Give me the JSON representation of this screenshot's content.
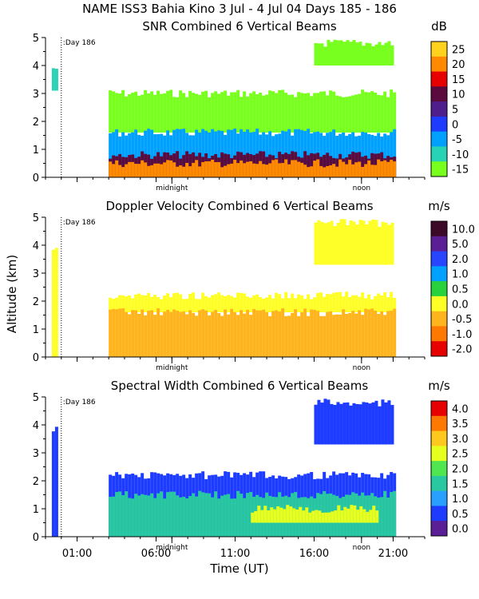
{
  "header": {
    "title": "NAME ISS3 Bahia Kino    3 Jul -  4 Jul 04 Days 185 - 186"
  },
  "shared": {
    "day_marker": "Day 186",
    "midnight_label": "midnight",
    "noon_label": "noon",
    "ylabel": "Altitude (km)",
    "xlabel": "Time (UT)",
    "x_ticks": [
      "01:00",
      "06:00",
      "11:00",
      "16:00",
      "21:00"
    ],
    "x_tick_hours": [
      1,
      6,
      11,
      16,
      21
    ],
    "x_range_hours": [
      -1,
      23
    ],
    "data_x_range_hours": [
      -0.6,
      21.0
    ]
  },
  "chart_data": [
    {
      "type": "heatmap",
      "title": "SNR Combined 6 Vertical Beams",
      "units": "dB",
      "ylabel": "Altitude (km)",
      "ylim": [
        0,
        5
      ],
      "y_ticks": [
        "0",
        "1",
        "2",
        "3",
        "4",
        "5"
      ],
      "colorbar_labels": [
        "25",
        "20",
        "15",
        "10",
        "5",
        "0",
        "-5",
        "-10",
        "-15"
      ],
      "colorbar_colors": [
        "#ffd21e",
        "#ff8a00",
        "#e60000",
        "#5a0a3c",
        "#4e1e8c",
        "#1e3cff",
        "#00a0ff",
        "#28d2b4",
        "#78ff1e"
      ],
      "layers": [
        {
          "x0": -0.6,
          "x1": -0.2,
          "y0": 3.1,
          "y1": 3.9,
          "color_value": -10
        },
        {
          "x0": 3.0,
          "x1": 21.0,
          "y0": 1.6,
          "y1": 3.0,
          "color_value": -15
        },
        {
          "x0": 3.0,
          "x1": 21.0,
          "y0": 0.0,
          "y1": 1.6,
          "color_value": -5
        },
        {
          "x0": 3.0,
          "x1": 21.0,
          "y0": 0.0,
          "y1": 0.8,
          "color_value": 10
        },
        {
          "x0": 3.0,
          "x1": 21.0,
          "y0": 0.0,
          "y1": 0.5,
          "color_value": 20
        },
        {
          "x0": 16.0,
          "x1": 21.0,
          "y0": 4.0,
          "y1": 4.8,
          "color_value": -15
        }
      ]
    },
    {
      "type": "heatmap",
      "title": "Doppler Velocity Combined 6 Vertical Beams",
      "units": "m/s",
      "ylabel": "Altitude (km)",
      "ylim": [
        0,
        5
      ],
      "y_ticks": [
        "0",
        "1",
        "2",
        "3",
        "4",
        "5"
      ],
      "colorbar_labels": [
        "10.0",
        "5.0",
        "2.0",
        "1.0",
        "0.5",
        "0.0",
        "-0.5",
        "-1.0",
        "-2.0"
      ],
      "colorbar_colors": [
        "#3c0a28",
        "#5a1e96",
        "#2846ff",
        "#00a0ff",
        "#28d23c",
        "#ffff28",
        "#ffb41e",
        "#ff7800",
        "#e60000"
      ],
      "layers": [
        {
          "x0": -0.6,
          "x1": -0.2,
          "y0": 0.0,
          "y1": 3.9,
          "color_value": 0.0
        },
        {
          "x0": 3.0,
          "x1": 21.0,
          "y0": 1.6,
          "y1": 2.2,
          "color_value": 0.0
        },
        {
          "x0": 3.0,
          "x1": 21.0,
          "y0": 0.0,
          "y1": 1.6,
          "color_value": -0.5
        },
        {
          "x0": 16.0,
          "x1": 21.0,
          "y0": 3.3,
          "y1": 4.8,
          "color_value": 0.0
        }
      ]
    },
    {
      "type": "heatmap",
      "title": "Spectral Width Combined 6 Vertical Beams",
      "units": "m/s",
      "ylabel": "Altitude (km)",
      "ylim": [
        0,
        5
      ],
      "y_ticks": [
        "0",
        "1",
        "2",
        "3",
        "4",
        "5"
      ],
      "colorbar_labels": [
        "4.0",
        "3.5",
        "3.0",
        "2.5",
        "2.0",
        "1.5",
        "1.0",
        "0.5",
        "0.0"
      ],
      "colorbar_colors": [
        "#e60000",
        "#ff7800",
        "#ffc81e",
        "#e6ff1e",
        "#50e650",
        "#28c8a0",
        "#28a0ff",
        "#1e3cff",
        "#5a1e96"
      ],
      "layers": [
        {
          "x0": -0.6,
          "x1": -0.2,
          "y0": 0.0,
          "y1": 3.9,
          "color_value": 0.5
        },
        {
          "x0": 3.0,
          "x1": 21.0,
          "y0": 0.0,
          "y1": 2.2,
          "color_value": 0.5
        },
        {
          "x0": 3.0,
          "x1": 21.0,
          "y0": 0.0,
          "y1": 1.5,
          "color_value": 1.5
        },
        {
          "x0": 12.0,
          "x1": 20.0,
          "y0": 0.5,
          "y1": 1.0,
          "color_value": 2.5
        },
        {
          "x0": 16.0,
          "x1": 21.0,
          "y0": 3.3,
          "y1": 4.8,
          "color_value": 0.5
        }
      ]
    }
  ]
}
